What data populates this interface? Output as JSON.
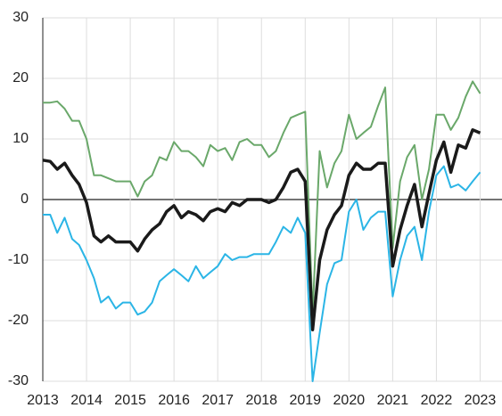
{
  "chart_data": {
    "type": "line",
    "x": [
      2013,
      2013.17,
      2013.33,
      2013.5,
      2013.67,
      2013.83,
      2014,
      2014.17,
      2014.33,
      2014.5,
      2014.67,
      2014.83,
      2015,
      2015.17,
      2015.33,
      2015.5,
      2015.67,
      2015.83,
      2016,
      2016.17,
      2016.33,
      2016.5,
      2016.67,
      2016.83,
      2017,
      2017.17,
      2017.33,
      2017.5,
      2017.67,
      2017.83,
      2018,
      2018.17,
      2018.33,
      2018.5,
      2018.67,
      2018.83,
      2019,
      2019.17,
      2019.33,
      2019.5,
      2019.67,
      2019.83,
      2020,
      2020.17,
      2020.33,
      2020.5,
      2020.67,
      2020.83,
      2021,
      2021.17,
      2021.33,
      2021.5,
      2021.67,
      2021.83,
      2022,
      2022.17,
      2022.33,
      2022.5,
      2022.67,
      2022.83,
      2023
    ],
    "series": [
      {
        "color": "#6aa86a",
        "values": [
          16,
          16,
          16.2,
          15,
          13,
          13,
          10,
          4,
          4,
          3.5,
          3,
          3,
          3,
          0.5,
          3,
          4,
          7,
          6.5,
          9.5,
          8,
          8,
          7,
          5.5,
          9,
          8,
          8.5,
          6.5,
          9.5,
          10,
          9,
          9,
          7,
          8,
          11,
          13.5,
          14,
          14.5,
          -19,
          8,
          2,
          6,
          8,
          14,
          10,
          11,
          12,
          15.5,
          18.5,
          -8,
          3,
          7,
          9,
          0,
          5,
          14,
          14,
          11.5,
          13.5,
          17,
          19.5,
          17.5
        ]
      },
      {
        "color": "#2bb5e6",
        "values": [
          -2.5,
          -2.5,
          -5.5,
          -3,
          -6.5,
          -7.5,
          -10,
          -13,
          -17,
          -16,
          -18,
          -17,
          -17,
          -19,
          -18.5,
          -17,
          -13.5,
          -12.5,
          -11.5,
          -12.5,
          -13.5,
          -11,
          -13,
          -12,
          -11,
          -9,
          -10,
          -9.5,
          -9.5,
          -9,
          -9,
          -9,
          -7,
          -4.5,
          -5.5,
          -3,
          -5.5,
          -30,
          -22,
          -14,
          -10.5,
          -10,
          -2,
          0,
          -5,
          -3,
          -2,
          -2,
          -16,
          -10,
          -6,
          -4.5,
          -10,
          -2,
          4,
          5.5,
          2,
          2.5,
          1.5,
          3,
          4.5
        ]
      },
      {
        "color": "#1a1a1a",
        "values": [
          6.5,
          6.3,
          5,
          6,
          4,
          2.5,
          -0.5,
          -6,
          -7,
          -6,
          -7,
          -7,
          -7,
          -8.5,
          -6.5,
          -5,
          -4,
          -2,
          -1,
          -3,
          -2,
          -2.5,
          -3.5,
          -2,
          -1.5,
          -2,
          -0.5,
          -1,
          0,
          0,
          0,
          -0.5,
          0,
          2,
          4.5,
          5,
          3,
          -21.5,
          -10,
          -5,
          -2.5,
          -1,
          4,
          6,
          5,
          5,
          6,
          6,
          -11,
          -5,
          -1,
          2.5,
          -4.5,
          1,
          6.5,
          9.5,
          4.5,
          9,
          8.5,
          11.5,
          11
        ]
      }
    ],
    "xlim": [
      2013,
      2023.5
    ],
    "xticks": [
      2013,
      2014,
      2015,
      2016,
      2017,
      2018,
      2019,
      2020,
      2021,
      2022,
      2023
    ],
    "ylim": [
      -30,
      30
    ],
    "yticks": [
      -30,
      -20,
      -10,
      0,
      10,
      20,
      30
    ],
    "grid": true
  }
}
